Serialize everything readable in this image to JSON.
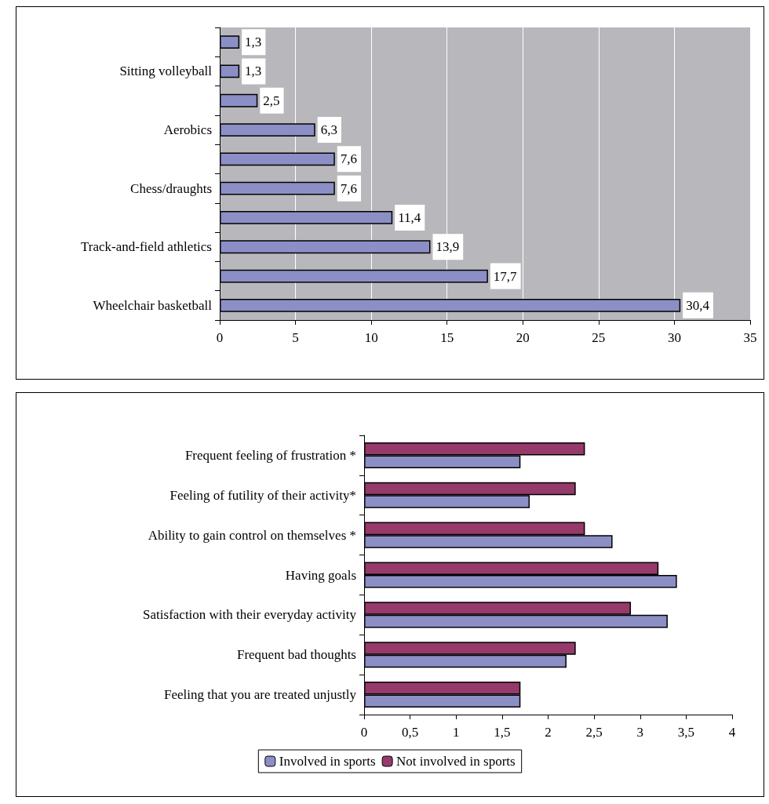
{
  "chart_data": [
    {
      "type": "bar",
      "orientation": "horizontal",
      "categories": [
        null,
        "Sitting volleyball",
        null,
        "Aerobics",
        null,
        "Chess/draughts",
        null,
        "Track-and-field athletics",
        null,
        "Wheelchair basketball"
      ],
      "values": [
        1.3,
        1.3,
        2.5,
        6.3,
        7.6,
        7.6,
        11.4,
        13.9,
        17.7,
        30.4
      ],
      "value_labels": [
        "1,3",
        "1,3",
        "2,5",
        "6,3",
        "7,6",
        "7,6",
        "11,4",
        "13,9",
        "17,7",
        "30,4"
      ],
      "color": "#8c8fc6",
      "xlim": [
        0,
        35
      ],
      "xticks": [
        0,
        5,
        10,
        15,
        20,
        25,
        30,
        35
      ],
      "grid": "x",
      "legend": false
    },
    {
      "type": "bar",
      "orientation": "horizontal",
      "categories": [
        "Frequent feeling of frustration *",
        "Feeling of futility of their activity*",
        "Ability to gain control on themselves *",
        "Having goals",
        "Satisfaction with their everyday activity",
        "Frequent bad thoughts",
        "Feeling that you are treated unjustly"
      ],
      "series": [
        {
          "name": "Involved in sports",
          "color": "#8c8fc6",
          "values": [
            1.7,
            1.8,
            2.7,
            3.4,
            3.3,
            2.2,
            1.7
          ]
        },
        {
          "name": "Not involved in sports",
          "color": "#953a6b",
          "values": [
            2.4,
            2.3,
            2.4,
            3.2,
            2.9,
            2.3,
            1.7
          ]
        }
      ],
      "xlim": [
        0,
        4
      ],
      "xticks": [
        0,
        {
          "value": 0.5,
          "label": "0,5"
        },
        1,
        {
          "value": 1.5,
          "label": "1,5"
        },
        2,
        {
          "value": 2.5,
          "label": "2,5"
        },
        3,
        {
          "value": 3.5,
          "label": "3,5"
        },
        4
      ],
      "grid": false,
      "legend": "bottom"
    }
  ]
}
